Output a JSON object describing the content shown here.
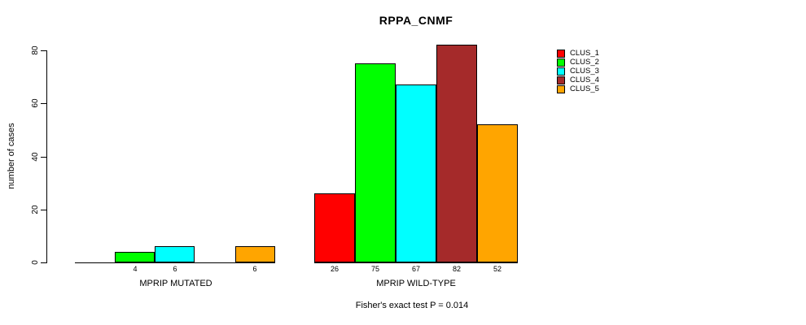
{
  "chart_data": {
    "type": "bar",
    "title": "RPPA_CNMF",
    "ylabel": "number of cases",
    "ylim": [
      0,
      80
    ],
    "yticks": [
      0,
      20,
      40,
      60,
      80
    ],
    "grid": false,
    "legend_position": "right",
    "series": [
      {
        "name": "CLUS_1",
        "color": "#FF0000",
        "values": [
          0,
          26
        ]
      },
      {
        "name": "CLUS_2",
        "color": "#00FF00",
        "values": [
          4,
          75
        ]
      },
      {
        "name": "CLUS_3",
        "color": "#00FFFF",
        "values": [
          6,
          67
        ]
      },
      {
        "name": "CLUS_4",
        "color": "#A52A2A",
        "values": [
          0,
          82
        ]
      },
      {
        "name": "CLUS_5",
        "color": "#FFA500",
        "values": [
          6,
          52
        ]
      }
    ],
    "groups": [
      {
        "label": "MPRIP MUTATED",
        "values": [
          0,
          4,
          6,
          0,
          6
        ],
        "bar_labels": [
          "",
          "4",
          "6",
          "",
          "6"
        ]
      },
      {
        "label": "MPRIP WILD-TYPE",
        "values": [
          26,
          75,
          67,
          82,
          52
        ],
        "bar_labels": [
          "26",
          "75",
          "67",
          "82",
          "52"
        ]
      }
    ],
    "caption": "Fisher's exact test P = 0.014",
    "axis_color": "#000000",
    "background_color": "#FFFFFF"
  }
}
